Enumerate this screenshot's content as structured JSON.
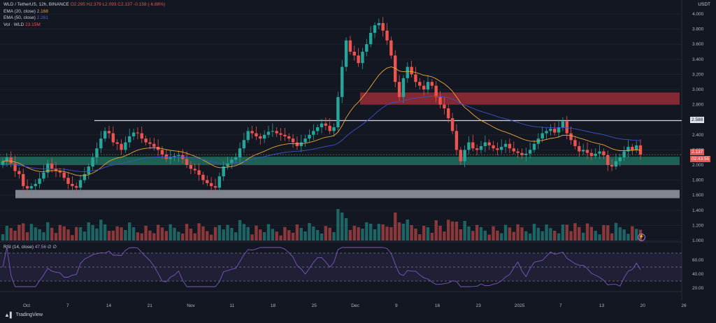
{
  "symbol": {
    "title": "WLD / TetherUS, 12h, BINANCE",
    "open": "O2.295",
    "high": "H2.379",
    "low": "L2.093",
    "close": "C2.137",
    "change": "-0.158 (-6.88%)"
  },
  "indicators": {
    "ema20_label": "EMA (20, close)",
    "ema20_value": "2.168",
    "ema50_label": "EMA (50, close)",
    "ema50_value": "2.261",
    "vol_label": "Vol · WLD",
    "vol_value": "23.15M",
    "rsi_label": "RSI (14, close)",
    "rsi_value": "47.56",
    "rsi_extra": "∅ ∅"
  },
  "currency": "USDT",
  "price_tags": {
    "resistance": "2.588",
    "last": "2.137",
    "countdown": "02:43:55"
  },
  "colors": {
    "up": "#26a69a",
    "down": "#ef5350",
    "ema20": "#f0a53a",
    "ema50": "#3f51c8",
    "rsi": "#7e57c2",
    "support_zone": "#1e6f5c",
    "resistance_zone": "#b5313a",
    "lower_zone": "#b2b5be"
  },
  "branding": "TradingView",
  "chart_data": {
    "type": "candlestick",
    "title": "WLD / TetherUS, 12h, BINANCE",
    "y_ticks": [
      "4.000",
      "3.800",
      "3.600",
      "3.400",
      "3.200",
      "3.000",
      "2.800",
      "2.600",
      "2.400",
      "2.200",
      "2.000",
      "1.800",
      "1.600",
      "1.400",
      "1.200",
      "1.000"
    ],
    "ylim": [
      1.0,
      4.0
    ],
    "x_ticks": [
      "Oct",
      "7",
      "14",
      "21",
      "Nov",
      "11",
      "18",
      "25",
      "Dec",
      "9",
      "16",
      "23",
      "2025",
      "7",
      "13",
      "20",
      "26"
    ],
    "closes": [
      2.05,
      2.1,
      2.02,
      1.92,
      1.88,
      1.72,
      1.69,
      1.72,
      1.75,
      1.82,
      1.9,
      2.02,
      1.95,
      1.92,
      1.9,
      1.83,
      1.75,
      1.72,
      1.7,
      1.8,
      1.88,
      1.98,
      2.1,
      2.22,
      2.35,
      2.45,
      2.42,
      2.3,
      2.28,
      2.2,
      2.3,
      2.38,
      2.43,
      2.42,
      2.35,
      2.3,
      2.28,
      2.24,
      2.2,
      2.14,
      2.08,
      2.1,
      2.12,
      2.13,
      2.08,
      2.0,
      1.95,
      1.93,
      1.87,
      1.8,
      1.76,
      1.72,
      1.7,
      1.85,
      1.98,
      2.02,
      2.07,
      2.1,
      2.22,
      2.33,
      2.45,
      2.42,
      2.38,
      2.35,
      2.4,
      2.44,
      2.45,
      2.42,
      2.4,
      2.38,
      2.35,
      2.3,
      2.25,
      2.3,
      2.35,
      2.4,
      2.45,
      2.5,
      2.55,
      2.52,
      2.45,
      2.5,
      2.9,
      3.3,
      3.65,
      3.5,
      3.45,
      3.35,
      3.5,
      3.6,
      3.75,
      3.85,
      3.88,
      3.78,
      3.65,
      3.45,
      3.1,
      2.9,
      3.15,
      3.3,
      3.2,
      3.1,
      3.05,
      3.0,
      3.1,
      3.05,
      2.9,
      2.8,
      2.75,
      2.62,
      2.45,
      2.2,
      2.05,
      2.2,
      2.3,
      2.22,
      2.2,
      2.25,
      2.3,
      2.26,
      2.22,
      2.2,
      2.24,
      2.28,
      2.22,
      2.18,
      2.16,
      2.13,
      2.15,
      2.2,
      2.28,
      2.35,
      2.42,
      2.45,
      2.48,
      2.43,
      2.5,
      2.58,
      2.42,
      2.33,
      2.25,
      2.18,
      2.2,
      2.16,
      2.12,
      2.15,
      2.18,
      2.13,
      2.0,
      1.98,
      2.05,
      2.1,
      2.18,
      2.24,
      2.2,
      2.26,
      2.137
    ],
    "levels": [
      {
        "name": "resistance-line",
        "price": 2.588
      },
      {
        "name": "support-zone",
        "from": 2.0,
        "to": 2.11
      },
      {
        "name": "resistance-zone",
        "from": 2.8,
        "to": 2.96
      },
      {
        "name": "lower-zone",
        "from": 1.56,
        "to": 1.67
      }
    ],
    "rsi_ticks": [
      "60.00",
      "40.00",
      "20.00"
    ],
    "rsi_levels": [
      70,
      50,
      30
    ],
    "last_price": 2.137
  }
}
